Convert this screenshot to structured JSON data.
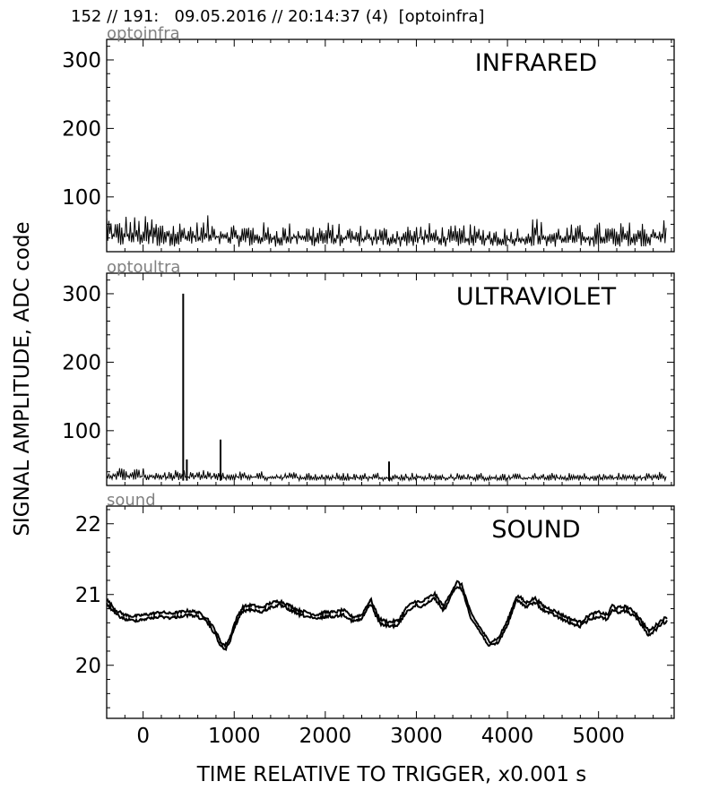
{
  "header": {
    "title": "152 // 191:   09.05.2016 // 20:14:37 (4)  [optoinfra]"
  },
  "figure": {
    "ylabel": "SIGNAL AMPLITUDE,  ADC code",
    "xlabel": "TIME RELATIVE TO TRIGGER,   x0.001 s",
    "xlim": [
      -400,
      5830
    ],
    "xticks": [
      0,
      1000,
      2000,
      3000,
      4000,
      5000
    ],
    "colors": {
      "line": "#000000",
      "small_label": "#808080",
      "axes": "#000000"
    }
  },
  "chart_data": [
    {
      "type": "line",
      "panel": "infrared",
      "title": "INFRARED",
      "channel_label": "optoinfra",
      "ylim": [
        20,
        330
      ],
      "yticks": [
        100,
        200,
        300
      ],
      "x": [
        -390,
        -350,
        -300,
        -250,
        -200,
        -100,
        0,
        100,
        200,
        300,
        400,
        500,
        600,
        700,
        800,
        900,
        1000,
        1200,
        1400,
        1600,
        1800,
        2000,
        2200,
        2400,
        2600,
        2800,
        3000,
        3200,
        3400,
        3500,
        3600,
        3800,
        4000,
        4200,
        4320,
        4400,
        4600,
        4800,
        5000,
        5200,
        5400,
        5600,
        5750
      ],
      "y_max": [
        88,
        75,
        72,
        70,
        78,
        74,
        72,
        76,
        70,
        72,
        69,
        70,
        66,
        74,
        68,
        70,
        66,
        67,
        62,
        64,
        63,
        66,
        60,
        61,
        59,
        62,
        64,
        62,
        58,
        62,
        60,
        60,
        58,
        60,
        78,
        60,
        62,
        60,
        64,
        62,
        66,
        68,
        70
      ],
      "y_min": [
        30,
        27,
        28,
        27,
        27,
        28,
        28,
        27,
        27,
        28,
        27,
        28,
        27,
        27,
        28,
        27,
        27,
        27,
        27,
        28,
        28,
        27,
        28,
        27,
        28,
        27,
        27,
        28,
        27,
        27,
        28,
        28,
        27,
        27,
        28,
        27,
        27,
        28,
        27,
        27,
        28,
        27,
        28
      ]
    },
    {
      "type": "line",
      "panel": "ultraviolet",
      "title": "ULTRAVIOLET",
      "channel_label": "optoultra",
      "ylim": [
        20,
        330
      ],
      "yticks": [
        100,
        200,
        300
      ],
      "x": [
        -390,
        -300,
        -200,
        -100,
        0,
        100,
        200,
        300,
        400,
        500,
        600,
        700,
        800,
        900,
        1000,
        1200,
        1400,
        1600,
        1800,
        2000,
        2200,
        2400,
        2600,
        2800,
        3000,
        3200,
        3400,
        3600,
        3800,
        4000,
        4200,
        4400,
        4600,
        4800,
        5000,
        5200,
        5400,
        5600,
        5750
      ],
      "y_max": [
        45,
        50,
        47,
        46,
        45,
        44,
        44,
        42,
        43,
        42,
        45,
        42,
        44,
        41,
        43,
        42,
        40,
        41,
        40,
        40,
        39,
        40,
        40,
        39,
        40,
        39,
        38,
        39,
        39,
        38,
        38,
        39,
        38,
        39,
        38,
        39,
        39,
        40,
        44
      ],
      "y_min": [
        27,
        27,
        27,
        27,
        27,
        27,
        27,
        27,
        27,
        27,
        27,
        27,
        27,
        27,
        27,
        27,
        27,
        27,
        27,
        27,
        27,
        27,
        27,
        27,
        27,
        27,
        27,
        27,
        27,
        27,
        27,
        27,
        27,
        27,
        27,
        27,
        27,
        27,
        27
      ],
      "spikes": [
        {
          "x": 440,
          "y": 300
        },
        {
          "x": 480,
          "y": 58
        },
        {
          "x": 850,
          "y": 87
        },
        {
          "x": 2700,
          "y": 55
        }
      ]
    },
    {
      "type": "line",
      "panel": "sound",
      "title": "SOUND",
      "channel_label": "sound",
      "ylim": [
        19.25,
        22.25
      ],
      "yticks": [
        20,
        21,
        22
      ],
      "x": [
        -400,
        -300,
        -200,
        -100,
        0,
        100,
        200,
        300,
        400,
        500,
        600,
        700,
        800,
        850,
        900,
        950,
        1000,
        1050,
        1100,
        1200,
        1300,
        1400,
        1500,
        1600,
        1700,
        1800,
        1900,
        2000,
        2100,
        2200,
        2300,
        2400,
        2450,
        2500,
        2550,
        2600,
        2700,
        2800,
        2900,
        3000,
        3050,
        3100,
        3200,
        3300,
        3400,
        3450,
        3500,
        3550,
        3600,
        3700,
        3800,
        3900,
        4000,
        4100,
        4150,
        4200,
        4300,
        4400,
        4500,
        4600,
        4700,
        4800,
        4900,
        5000,
        5100,
        5150,
        5200,
        5300,
        5400,
        5500,
        5550,
        5600,
        5700,
        5760
      ],
      "y": [
        20.9,
        20.75,
        20.68,
        20.66,
        20.68,
        20.7,
        20.72,
        20.7,
        20.72,
        20.74,
        20.72,
        20.64,
        20.45,
        20.3,
        20.25,
        20.35,
        20.55,
        20.7,
        20.8,
        20.82,
        20.78,
        20.85,
        20.88,
        20.82,
        20.75,
        20.72,
        20.68,
        20.72,
        20.72,
        20.75,
        20.65,
        20.68,
        20.8,
        20.9,
        20.75,
        20.62,
        20.58,
        20.6,
        20.8,
        20.88,
        20.85,
        20.9,
        20.98,
        20.8,
        21.05,
        21.15,
        21.1,
        20.9,
        20.7,
        20.5,
        20.3,
        20.35,
        20.6,
        20.95,
        20.92,
        20.85,
        20.92,
        20.8,
        20.75,
        20.68,
        20.62,
        20.58,
        20.68,
        20.72,
        20.68,
        20.82,
        20.78,
        20.8,
        20.72,
        20.55,
        20.45,
        20.5,
        20.62,
        20.65
      ]
    }
  ]
}
